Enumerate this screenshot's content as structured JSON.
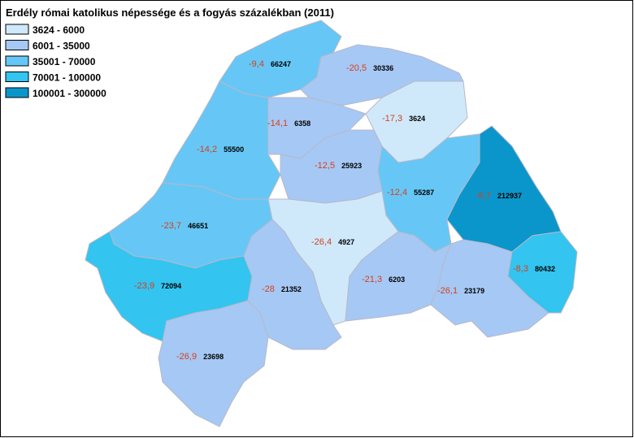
{
  "title": "Erdély római katolikus népessége és a fogyás százalékban (2011)",
  "legend": [
    {
      "label": "3624 - 6000",
      "color": "#cfe9fb"
    },
    {
      "label": "6001 - 35000",
      "color": "#a6c8f4"
    },
    {
      "label": "35001 - 70000",
      "color": "#66c7f6"
    },
    {
      "label": "70001 - 100000",
      "color": "#33c4f0"
    },
    {
      "label": "100001 - 300000",
      "color": "#0b96cb"
    }
  ],
  "regions": [
    {
      "change": "-9,4",
      "population": "66247",
      "color": "#66c7f6"
    },
    {
      "change": "-20,5",
      "population": "30336",
      "color": "#a6c8f4"
    },
    {
      "change": "-14,2",
      "population": "55500",
      "color": "#66c7f6"
    },
    {
      "change": "-14,1",
      "population": "6358",
      "color": "#a6c8f4"
    },
    {
      "change": "-17,3",
      "population": "3624",
      "color": "#cfe9fb"
    },
    {
      "change": "-12,5",
      "population": "25923",
      "color": "#a6c8f4"
    },
    {
      "change": "-12,4",
      "population": "55287",
      "color": "#66c7f6"
    },
    {
      "change": "-6,7",
      "population": "212937",
      "color": "#0b96cb"
    },
    {
      "change": "-23,7",
      "population": "46651",
      "color": "#66c7f6"
    },
    {
      "change": "-26,4",
      "population": "4927",
      "color": "#cfe9fb"
    },
    {
      "change": "-23,9",
      "population": "72094",
      "color": "#33c4f0"
    },
    {
      "change": "-28",
      "population": "21352",
      "color": "#a6c8f4"
    },
    {
      "change": "-26,9",
      "population": "23698",
      "color": "#a6c8f4"
    },
    {
      "change": "-21,3",
      "population": "6203",
      "color": "#a6c8f4"
    },
    {
      "change": "-26,1",
      "population": "23179",
      "color": "#a6c8f4"
    },
    {
      "change": "-8,3",
      "population": "80432",
      "color": "#33c4f0"
    }
  ]
}
